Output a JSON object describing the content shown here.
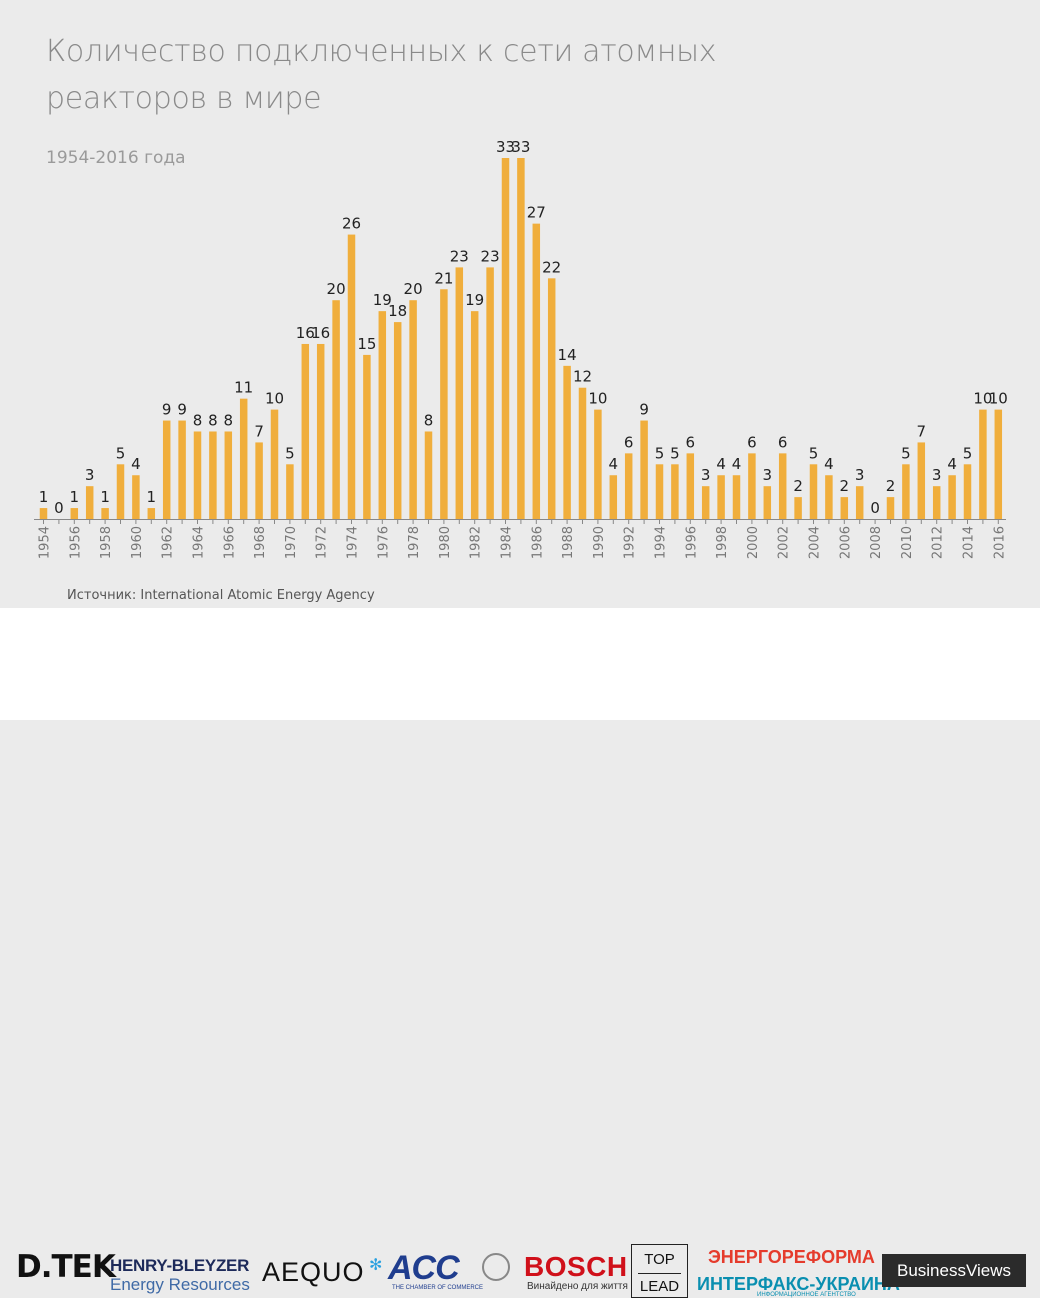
{
  "header": {
    "title": "Количество подключенных к сети атомных реакторов в мире",
    "subtitle": "1954-2016 года"
  },
  "source": "Источник: International Atomic Energy Agency",
  "colors": {
    "bar": "#f0ae3c",
    "label": "#222222",
    "axis": "#888888",
    "background": "#ebebeb"
  },
  "chart_data": {
    "type": "bar",
    "title": "Количество подключенных к сети атомных реакторов в мире",
    "subtitle": "1954-2016 года",
    "xlabel": "",
    "ylabel": "",
    "ylim": [
      0,
      33
    ],
    "categories": [
      1954,
      1955,
      1956,
      1957,
      1958,
      1959,
      1960,
      1961,
      1962,
      1963,
      1964,
      1965,
      1966,
      1967,
      1968,
      1969,
      1970,
      1971,
      1972,
      1973,
      1974,
      1975,
      1976,
      1977,
      1978,
      1979,
      1980,
      1981,
      1982,
      1983,
      1984,
      1985,
      1986,
      1987,
      1988,
      1989,
      1990,
      1991,
      1992,
      1993,
      1994,
      1995,
      1996,
      1997,
      1998,
      1999,
      2000,
      2001,
      2002,
      2003,
      2004,
      2005,
      2006,
      2007,
      2008,
      2009,
      2010,
      2011,
      2012,
      2013,
      2014,
      2015,
      2016
    ],
    "tick_labels": [
      "1954",
      "1956",
      "1958",
      "1960",
      "1962",
      "1964",
      "1966",
      "1968",
      "1970",
      "1972",
      "1974",
      "1976",
      "1978",
      "1980",
      "1982",
      "1984",
      "1986",
      "1988",
      "1990",
      "1992",
      "1994",
      "1996",
      "1998",
      "2000",
      "2002",
      "2004",
      "2006",
      "2008",
      "2010",
      "2012",
      "2014",
      "2016"
    ],
    "values": [
      1,
      0,
      1,
      3,
      1,
      5,
      4,
      1,
      9,
      9,
      8,
      8,
      8,
      11,
      7,
      10,
      5,
      16,
      16,
      20,
      26,
      15,
      19,
      18,
      20,
      8,
      21,
      23,
      19,
      23,
      33,
      33,
      27,
      22,
      14,
      12,
      10,
      4,
      6,
      9,
      5,
      5,
      6,
      3,
      4,
      4,
      6,
      3,
      6,
      2,
      5,
      4,
      2,
      3,
      0,
      2,
      5,
      7,
      3,
      4,
      5,
      10,
      10
    ]
  },
  "footer": {
    "logos": {
      "dtek": "D.TEK",
      "henry_bleyzer_1": "HENRY-BLEYZER",
      "henry_bleyzer_2": "Energy Resources",
      "aequo": "AEQUO",
      "acc": "ACC",
      "acc_sub": "THE CHAMBER OF COMMERCE",
      "bosch": "BOSCH",
      "bosch_sub": "Винайдено для життя",
      "toplead_1": "TOP",
      "toplead_2": "LEAD",
      "energo": "ЭНЕРГОРЕФОРМА",
      "interfax": "ИНТЕРФАКС-УКРАИНА",
      "interfax_sub": "ИНФОРМАЦИОННОЕ АГЕНТСТВО",
      "business_views": "BusinessViews"
    }
  }
}
